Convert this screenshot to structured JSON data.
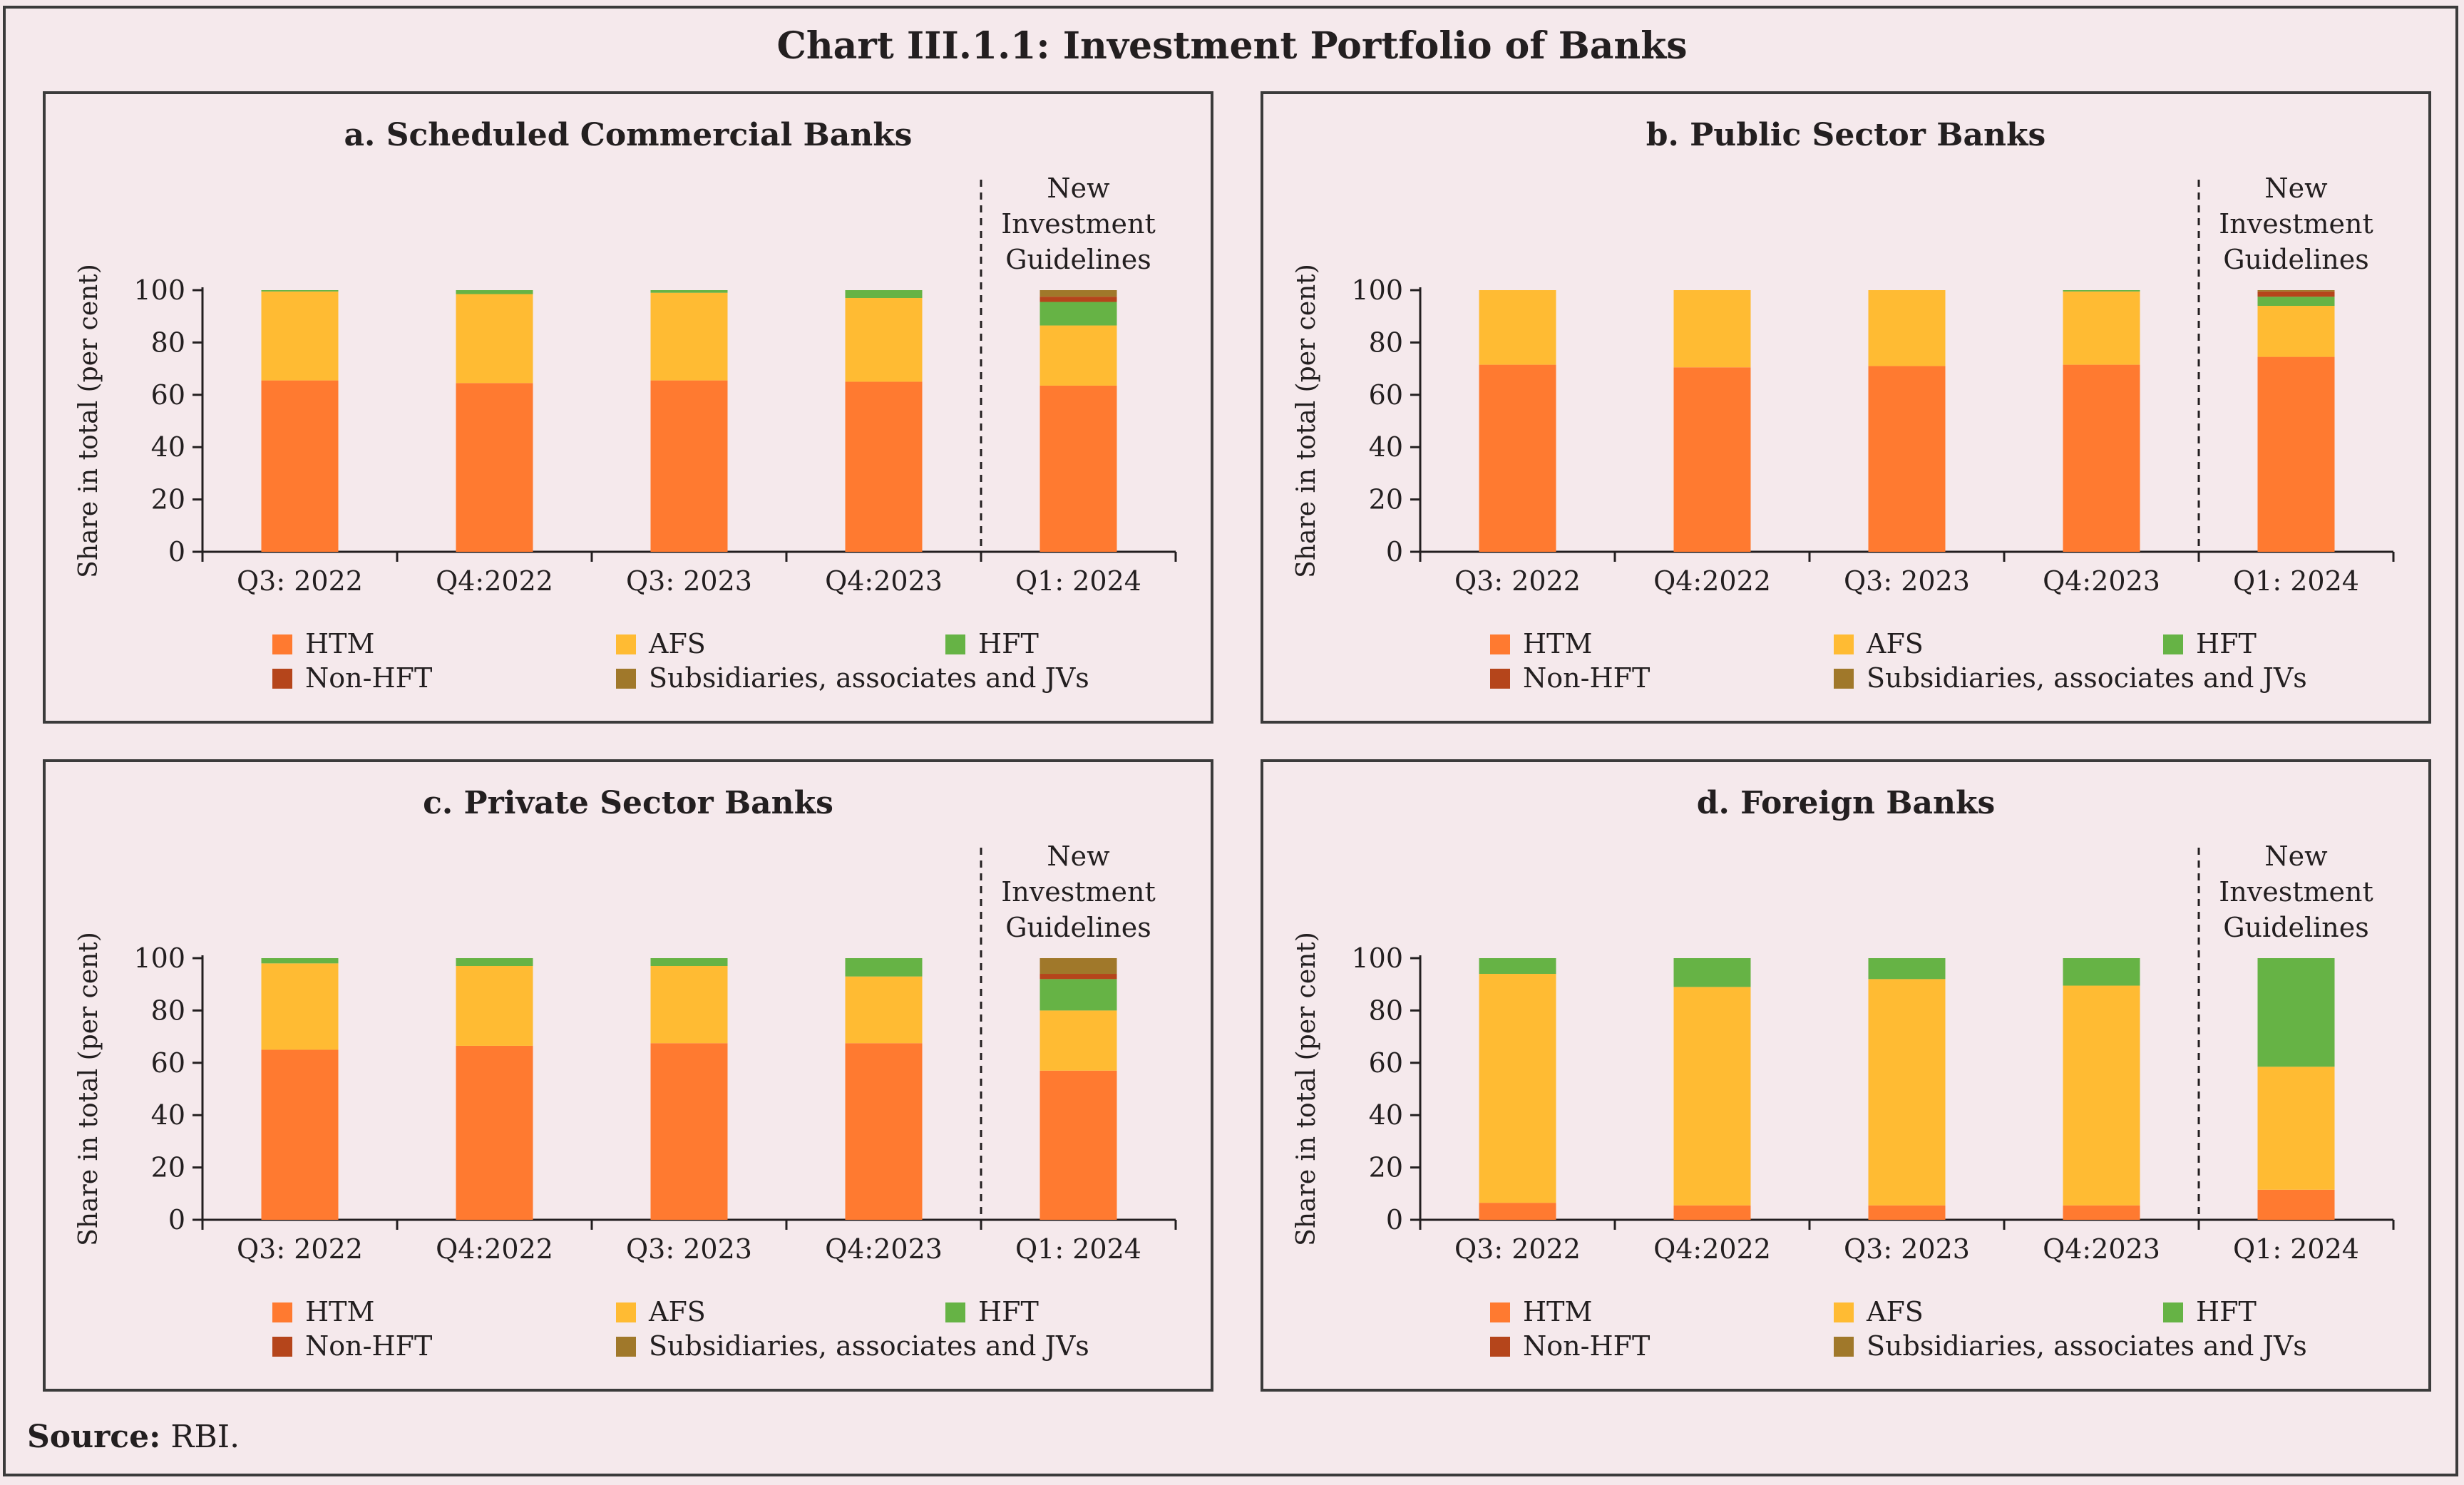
{
  "title": "Chart III.1.1: Investment Portfolio of Banks",
  "source": {
    "label": "Source:",
    "text": "RBI."
  },
  "colors": {
    "HTM": "#ff7a30",
    "AFS": "#ffbb33",
    "HFT": "#66b345",
    "Non-HFT": "#b5451b",
    "Subsidiaries, associates and JVs": "#a0782a"
  },
  "chart_data": [
    {
      "type": "bar",
      "stacked": true,
      "title": "a. Scheduled Commercial Banks",
      "ylabel": "Share in total (per cent)",
      "ylim": [
        0,
        100
      ],
      "yticks": [
        0,
        20,
        40,
        60,
        80,
        100
      ],
      "categories": [
        "Q3: 2022",
        "Q4:2022",
        "Q3: 2023",
        "Q4:2023",
        "Q1: 2024"
      ],
      "annotation": [
        "New",
        "Investment",
        "Guidelines"
      ],
      "legend": [
        "HTM",
        "AFS",
        "HFT",
        "Non-HFT",
        "Subsidiaries, associates and JVs"
      ],
      "series": [
        {
          "name": "HTM",
          "values": [
            65.5,
            64.5,
            65.5,
            65,
            63.5
          ]
        },
        {
          "name": "AFS",
          "values": [
            34,
            34,
            33.5,
            32,
            23
          ]
        },
        {
          "name": "HFT",
          "values": [
            0.5,
            1.5,
            1,
            3,
            9
          ]
        },
        {
          "name": "Non-HFT",
          "values": [
            0,
            0,
            0,
            0,
            2
          ]
        },
        {
          "name": "Subsidiaries, associates and JVs",
          "values": [
            0,
            0,
            0,
            0,
            2.5
          ]
        }
      ]
    },
    {
      "type": "bar",
      "stacked": true,
      "title": "b. Public Sector Banks",
      "ylabel": "Share in total (per cent)",
      "ylim": [
        0,
        100
      ],
      "yticks": [
        0,
        20,
        40,
        60,
        80,
        100
      ],
      "categories": [
        "Q3: 2022",
        "Q4:2022",
        "Q3: 2023",
        "Q4:2023",
        "Q1: 2024"
      ],
      "annotation": [
        "New",
        "Investment",
        "Guidelines"
      ],
      "legend": [
        "HTM",
        "AFS",
        "HFT",
        "Non-HFT",
        "Subsidiaries, associates and JVs"
      ],
      "series": [
        {
          "name": "HTM",
          "values": [
            71.5,
            70.5,
            71,
            71.5,
            74.5
          ]
        },
        {
          "name": "AFS",
          "values": [
            28.5,
            29.5,
            29,
            28,
            19.5
          ]
        },
        {
          "name": "HFT",
          "values": [
            0,
            0,
            0,
            0.5,
            3.5
          ]
        },
        {
          "name": "Non-HFT",
          "values": [
            0,
            0,
            0,
            0,
            2
          ]
        },
        {
          "name": "Subsidiaries, associates and JVs",
          "values": [
            0,
            0,
            0,
            0,
            0.5
          ]
        }
      ]
    },
    {
      "type": "bar",
      "stacked": true,
      "title": "c. Private Sector Banks",
      "ylabel": "Share in total (per cent)",
      "ylim": [
        0,
        100
      ],
      "yticks": [
        0,
        20,
        40,
        60,
        80,
        100
      ],
      "categories": [
        "Q3: 2022",
        "Q4:2022",
        "Q3: 2023",
        "Q4:2023",
        "Q1: 2024"
      ],
      "annotation": [
        "New",
        "Investment",
        "Guidelines"
      ],
      "legend": [
        "HTM",
        "AFS",
        "HFT",
        "Non-HFT",
        "Subsidiaries, associates and JVs"
      ],
      "series": [
        {
          "name": "HTM",
          "values": [
            65,
            66.5,
            67.5,
            67.5,
            57
          ]
        },
        {
          "name": "AFS",
          "values": [
            33,
            30.5,
            29.5,
            25.5,
            23
          ]
        },
        {
          "name": "HFT",
          "values": [
            2,
            3,
            3,
            7,
            12
          ]
        },
        {
          "name": "Non-HFT",
          "values": [
            0,
            0,
            0,
            0,
            2
          ]
        },
        {
          "name": "Subsidiaries, associates and JVs",
          "values": [
            0,
            0,
            0,
            0,
            6
          ]
        }
      ]
    },
    {
      "type": "bar",
      "stacked": true,
      "title": "d. Foreign Banks",
      "ylabel": "Share in total (per cent)",
      "ylim": [
        0,
        100
      ],
      "yticks": [
        0,
        20,
        40,
        60,
        80,
        100
      ],
      "categories": [
        "Q3: 2022",
        "Q4:2022",
        "Q3: 2023",
        "Q4:2023",
        "Q1: 2024"
      ],
      "annotation": [
        "New",
        "Investment",
        "Guidelines"
      ],
      "legend": [
        "HTM",
        "AFS",
        "HFT",
        "Non-HFT",
        "Subsidiaries, associates and JVs"
      ],
      "series": [
        {
          "name": "HTM",
          "values": [
            6.5,
            5.5,
            5.5,
            5.5,
            11.5
          ]
        },
        {
          "name": "AFS",
          "values": [
            87.5,
            83.5,
            86.5,
            84,
            47
          ]
        },
        {
          "name": "HFT",
          "values": [
            6,
            11,
            8,
            10.5,
            41.5
          ]
        },
        {
          "name": "Non-HFT",
          "values": [
            0,
            0,
            0,
            0,
            0
          ]
        },
        {
          "name": "Subsidiaries, associates and JVs",
          "values": [
            0,
            0,
            0,
            0,
            0
          ]
        }
      ]
    }
  ]
}
